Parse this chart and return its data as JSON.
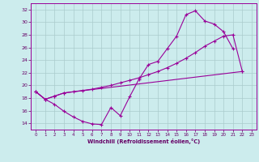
{
  "bg_color": "#cceced",
  "line_color": "#990099",
  "grid_color": "#aacccc",
  "spine_color": "#990099",
  "tick_color": "#660066",
  "xlabel": "Windchill (Refroidissement éolien,°C)",
  "xlabel_color": "#660066",
  "xlim": [
    -0.5,
    23.5
  ],
  "ylim": [
    13.0,
    33.0
  ],
  "xticks": [
    0,
    1,
    2,
    3,
    4,
    5,
    6,
    7,
    8,
    9,
    10,
    11,
    12,
    13,
    14,
    15,
    16,
    17,
    18,
    19,
    20,
    21,
    22,
    23
  ],
  "yticks": [
    14,
    16,
    18,
    20,
    22,
    24,
    26,
    28,
    30,
    32
  ],
  "s1_x": [
    0,
    1,
    2,
    3,
    4,
    5,
    6,
    7,
    8,
    9,
    10,
    11,
    12,
    13,
    14,
    15,
    16,
    17,
    18,
    19,
    20,
    21
  ],
  "s1_y": [
    19.0,
    17.8,
    17.0,
    15.9,
    15.0,
    14.3,
    13.9,
    13.8,
    16.5,
    15.2,
    18.2,
    21.0,
    23.3,
    23.8,
    25.8,
    27.8,
    31.2,
    31.8,
    30.2,
    29.7,
    28.5,
    25.8
  ],
  "s2_x": [
    0,
    1,
    2,
    3,
    22
  ],
  "s2_y": [
    19.0,
    17.8,
    18.3,
    18.8,
    22.2
  ],
  "s3_x": [
    0,
    1,
    2,
    3,
    4,
    5,
    6,
    7,
    8,
    9,
    10,
    11,
    12,
    13,
    14,
    15,
    16,
    17,
    18,
    19,
    20,
    21,
    22
  ],
  "s3_y": [
    19.0,
    17.8,
    18.3,
    18.8,
    19.0,
    19.2,
    19.4,
    19.7,
    20.0,
    20.4,
    20.8,
    21.2,
    21.7,
    22.2,
    22.8,
    23.5,
    24.3,
    25.2,
    26.2,
    27.0,
    27.8,
    28.0,
    22.2
  ]
}
